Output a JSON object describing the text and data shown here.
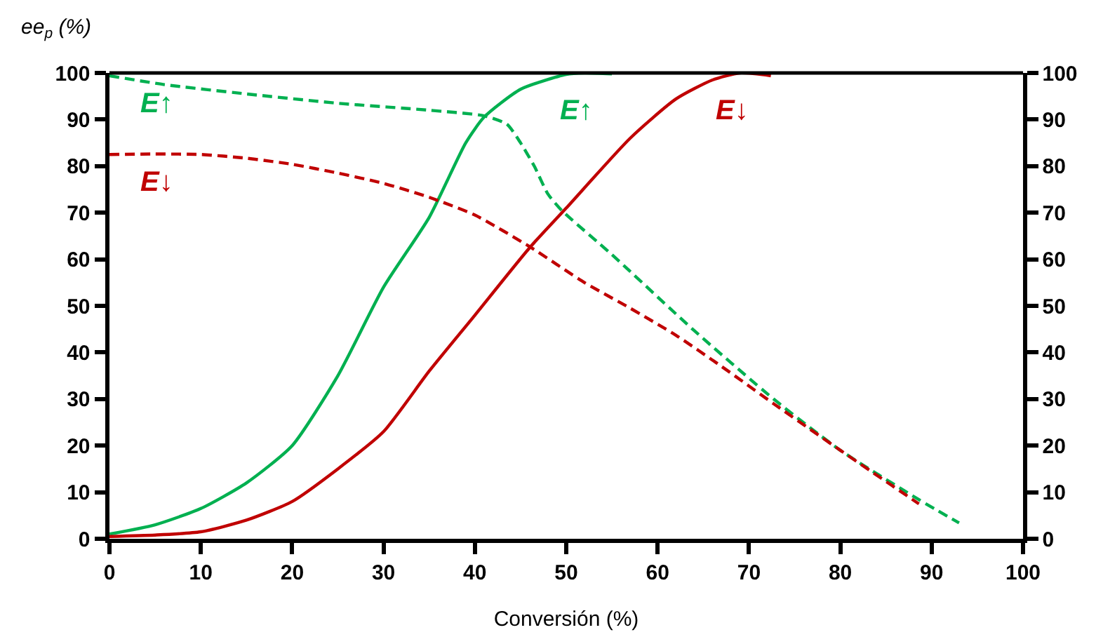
{
  "chart_data": {
    "type": "line",
    "xlabel": "Conversión (%)",
    "ylabel": "ee$_{p}$ (%)",
    "xlim": [
      0,
      100
    ],
    "xticks": [
      0,
      10,
      20,
      30,
      40,
      50,
      60,
      70,
      80,
      90,
      100
    ],
    "ylim": [
      0,
      100
    ],
    "yticks": [
      0,
      10,
      20,
      30,
      40,
      50,
      60,
      70,
      80,
      90,
      100
    ],
    "y2lim": [
      0,
      100
    ],
    "y2ticks": [
      0,
      10,
      20,
      30,
      40,
      50,
      60,
      70,
      80,
      90,
      100
    ],
    "legend": false,
    "marker": "none",
    "series": [
      {
        "name": "E↑",
        "color": "#00b050",
        "line_style": "solid",
        "x": [
          0,
          5,
          10,
          15,
          20,
          25,
          30,
          35,
          39,
          41,
          45,
          50,
          52,
          55
        ],
        "values": [
          1,
          3,
          6.5,
          12,
          20,
          35,
          54,
          69,
          85,
          90.5,
          96.5,
          99.7,
          100,
          99.8
        ]
      },
      {
        "name": "E↓",
        "color": "#c00000",
        "line_style": "solid",
        "x": [
          0,
          5,
          10,
          15,
          20,
          25,
          30,
          35,
          40,
          46,
          50,
          57,
          62,
          66,
          69,
          72.4
        ],
        "values": [
          0.5,
          0.8,
          1.5,
          4,
          8,
          15,
          23,
          36,
          48,
          62.5,
          71,
          86,
          94.4,
          98.5,
          100,
          99.4
        ]
      },
      {
        "name": "E↑",
        "color": "#00b050",
        "line_style": "dashed",
        "x": [
          0,
          6,
          15,
          25,
          35,
          41,
          43.5,
          45,
          46.5,
          48,
          49.5,
          55,
          64,
          72.7,
          80,
          88.6,
          93
        ],
        "values": [
          99.4,
          97.5,
          95.5,
          93.5,
          92,
          90.8,
          89,
          85,
          80,
          74,
          70.5,
          61,
          44.7,
          30,
          19,
          8.4,
          3.4
        ]
      },
      {
        "name": "E↓",
        "color": "#c00000",
        "line_style": "dashed",
        "x": [
          0,
          5,
          10,
          15,
          20,
          25,
          30,
          35,
          40,
          46,
          52,
          57,
          62,
          67,
          72.7,
          80,
          88.6
        ],
        "values": [
          82.5,
          82.6,
          82.5,
          81.7,
          80.4,
          78.5,
          76.3,
          73.3,
          69.5,
          62.7,
          55,
          49.5,
          43.7,
          37,
          29,
          19,
          7.5
        ]
      }
    ]
  }
}
